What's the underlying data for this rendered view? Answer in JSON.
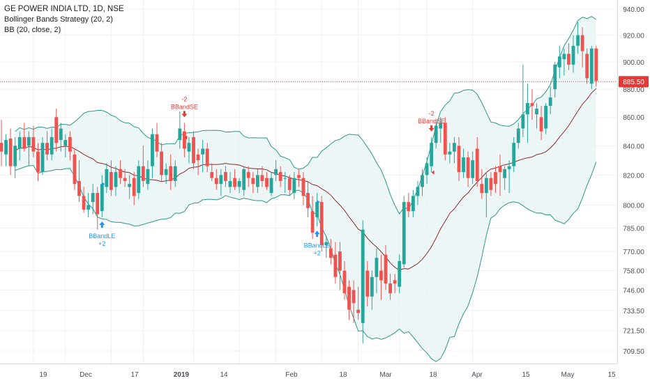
{
  "legend": {
    "title": "GE POWER INDIA LTD, 1D, NSE",
    "strategy": "Bollinger Bands Strategy (20, 2)",
    "indicator": "BB (20, close, 2)"
  },
  "colors": {
    "up": "#26a69a",
    "down": "#ef5350",
    "basis": "#8d2b2b",
    "band": "#2e9688",
    "band_fill": "#e6f3f3",
    "price_line": "#e53935",
    "buy_signal": "#2196f3",
    "sell_signal": "#e53935",
    "grid": "#eef0f3"
  },
  "chart_data": {
    "type": "candlestick",
    "price_axis_ticks": [
      "940.00",
      "920.00",
      "900.00",
      "885.50",
      "880.00",
      "860.00",
      "840.00",
      "820.00",
      "800.00",
      "785.00",
      "770.00",
      "758.00",
      "746.00",
      "733.50",
      "721.50",
      "709.50"
    ],
    "time_axis_labels": [
      "19",
      "Dec",
      "17",
      "2019",
      "14",
      "Feb",
      "18",
      "Mar",
      "18",
      "Apr",
      "15",
      "May",
      "15"
    ],
    "last_price": 885.5,
    "log_scale": true,
    "candles": [
      {
        "o": 842,
        "h": 858,
        "l": 826,
        "c": 836
      },
      {
        "o": 834,
        "h": 848,
        "l": 826,
        "c": 844
      },
      {
        "o": 845,
        "h": 852,
        "l": 820,
        "c": 826
      },
      {
        "o": 826,
        "h": 846,
        "l": 818,
        "c": 840
      },
      {
        "o": 838,
        "h": 850,
        "l": 830,
        "c": 846
      },
      {
        "o": 846,
        "h": 856,
        "l": 836,
        "c": 838
      },
      {
        "o": 840,
        "h": 850,
        "l": 826,
        "c": 846
      },
      {
        "o": 846,
        "h": 854,
        "l": 832,
        "c": 836
      },
      {
        "o": 836,
        "h": 842,
        "l": 816,
        "c": 822
      },
      {
        "o": 822,
        "h": 846,
        "l": 820,
        "c": 842
      },
      {
        "o": 842,
        "h": 850,
        "l": 830,
        "c": 834
      },
      {
        "o": 834,
        "h": 852,
        "l": 830,
        "c": 846
      },
      {
        "o": 860,
        "h": 866,
        "l": 836,
        "c": 842
      },
      {
        "o": 844,
        "h": 856,
        "l": 836,
        "c": 852
      },
      {
        "o": 840,
        "h": 848,
        "l": 832,
        "c": 844
      },
      {
        "o": 846,
        "h": 850,
        "l": 830,
        "c": 836
      },
      {
        "o": 834,
        "h": 838,
        "l": 810,
        "c": 814
      },
      {
        "o": 816,
        "h": 830,
        "l": 802,
        "c": 806
      },
      {
        "o": 806,
        "h": 812,
        "l": 795,
        "c": 797
      },
      {
        "o": 797,
        "h": 808,
        "l": 792,
        "c": 800
      },
      {
        "o": 802,
        "h": 814,
        "l": 794,
        "c": 808
      },
      {
        "o": 808,
        "h": 812,
        "l": 784,
        "c": 794
      },
      {
        "o": 796,
        "h": 820,
        "l": 792,
        "c": 814
      },
      {
        "o": 812,
        "h": 828,
        "l": 808,
        "c": 824
      },
      {
        "o": 822,
        "h": 830,
        "l": 806,
        "c": 810
      },
      {
        "o": 812,
        "h": 826,
        "l": 806,
        "c": 822
      },
      {
        "o": 824,
        "h": 830,
        "l": 814,
        "c": 818
      },
      {
        "o": 818,
        "h": 824,
        "l": 812,
        "c": 816
      },
      {
        "o": 812,
        "h": 820,
        "l": 804,
        "c": 814
      },
      {
        "o": 818,
        "h": 822,
        "l": 800,
        "c": 806
      },
      {
        "o": 808,
        "h": 830,
        "l": 804,
        "c": 826
      },
      {
        "o": 826,
        "h": 840,
        "l": 812,
        "c": 816
      },
      {
        "o": 814,
        "h": 830,
        "l": 810,
        "c": 824
      },
      {
        "o": 826,
        "h": 852,
        "l": 818,
        "c": 848
      },
      {
        "o": 848,
        "h": 856,
        "l": 832,
        "c": 836
      },
      {
        "o": 836,
        "h": 842,
        "l": 816,
        "c": 820
      },
      {
        "o": 820,
        "h": 828,
        "l": 814,
        "c": 824
      },
      {
        "o": 826,
        "h": 834,
        "l": 810,
        "c": 816
      },
      {
        "o": 816,
        "h": 830,
        "l": 812,
        "c": 826
      },
      {
        "o": 844,
        "h": 864,
        "l": 838,
        "c": 852
      },
      {
        "o": 850,
        "h": 856,
        "l": 832,
        "c": 838
      },
      {
        "o": 836,
        "h": 846,
        "l": 828,
        "c": 842
      },
      {
        "o": 846,
        "h": 850,
        "l": 824,
        "c": 828
      },
      {
        "o": 834,
        "h": 838,
        "l": 820,
        "c": 830
      },
      {
        "o": 834,
        "h": 844,
        "l": 822,
        "c": 838
      },
      {
        "o": 838,
        "h": 842,
        "l": 822,
        "c": 826
      },
      {
        "o": 822,
        "h": 828,
        "l": 816,
        "c": 818
      },
      {
        "o": 818,
        "h": 824,
        "l": 810,
        "c": 814
      },
      {
        "o": 814,
        "h": 824,
        "l": 806,
        "c": 820
      },
      {
        "o": 822,
        "h": 826,
        "l": 812,
        "c": 816
      },
      {
        "o": 812,
        "h": 822,
        "l": 808,
        "c": 816
      },
      {
        "o": 818,
        "h": 824,
        "l": 810,
        "c": 812
      },
      {
        "o": 812,
        "h": 818,
        "l": 808,
        "c": 816
      },
      {
        "o": 810,
        "h": 826,
        "l": 806,
        "c": 824
      },
      {
        "o": 822,
        "h": 826,
        "l": 812,
        "c": 818
      },
      {
        "o": 818,
        "h": 822,
        "l": 808,
        "c": 814
      },
      {
        "o": 812,
        "h": 824,
        "l": 808,
        "c": 820
      },
      {
        "o": 820,
        "h": 826,
        "l": 812,
        "c": 816
      },
      {
        "o": 818,
        "h": 822,
        "l": 810,
        "c": 812
      },
      {
        "o": 808,
        "h": 822,
        "l": 806,
        "c": 818
      },
      {
        "o": 820,
        "h": 830,
        "l": 816,
        "c": 824
      },
      {
        "o": 822,
        "h": 826,
        "l": 812,
        "c": 816
      },
      {
        "o": 818,
        "h": 822,
        "l": 808,
        "c": 818
      },
      {
        "o": 818,
        "h": 820,
        "l": 806,
        "c": 810
      },
      {
        "o": 808,
        "h": 822,
        "l": 804,
        "c": 818
      },
      {
        "o": 820,
        "h": 824,
        "l": 812,
        "c": 818
      },
      {
        "o": 818,
        "h": 822,
        "l": 800,
        "c": 806
      },
      {
        "o": 808,
        "h": 816,
        "l": 792,
        "c": 798
      },
      {
        "o": 796,
        "h": 806,
        "l": 778,
        "c": 782
      },
      {
        "o": 792,
        "h": 808,
        "l": 786,
        "c": 802
      },
      {
        "o": 802,
        "h": 806,
        "l": 770,
        "c": 774
      },
      {
        "o": 774,
        "h": 780,
        "l": 766,
        "c": 776
      },
      {
        "o": 772,
        "h": 778,
        "l": 762,
        "c": 766
      },
      {
        "o": 768,
        "h": 776,
        "l": 750,
        "c": 754
      },
      {
        "o": 770,
        "h": 776,
        "l": 746,
        "c": 758
      },
      {
        "o": 758,
        "h": 764,
        "l": 740,
        "c": 744
      },
      {
        "o": 748,
        "h": 752,
        "l": 728,
        "c": 734
      },
      {
        "o": 746,
        "h": 752,
        "l": 726,
        "c": 738
      },
      {
        "o": 734,
        "h": 748,
        "l": 728,
        "c": 732
      },
      {
        "o": 726,
        "h": 790,
        "l": 714,
        "c": 784
      },
      {
        "o": 758,
        "h": 764,
        "l": 736,
        "c": 742
      },
      {
        "o": 742,
        "h": 758,
        "l": 734,
        "c": 754
      },
      {
        "o": 754,
        "h": 772,
        "l": 744,
        "c": 766
      },
      {
        "o": 758,
        "h": 768,
        "l": 740,
        "c": 752
      },
      {
        "o": 768,
        "h": 774,
        "l": 746,
        "c": 750
      },
      {
        "o": 750,
        "h": 756,
        "l": 740,
        "c": 744
      },
      {
        "o": 752,
        "h": 756,
        "l": 744,
        "c": 750
      },
      {
        "o": 748,
        "h": 768,
        "l": 744,
        "c": 764
      },
      {
        "o": 762,
        "h": 806,
        "l": 760,
        "c": 802
      },
      {
        "o": 802,
        "h": 808,
        "l": 792,
        "c": 796
      },
      {
        "o": 796,
        "h": 810,
        "l": 792,
        "c": 806
      },
      {
        "o": 806,
        "h": 816,
        "l": 800,
        "c": 812
      },
      {
        "o": 812,
        "h": 824,
        "l": 806,
        "c": 820
      },
      {
        "o": 820,
        "h": 832,
        "l": 814,
        "c": 828
      },
      {
        "o": 826,
        "h": 846,
        "l": 822,
        "c": 842
      },
      {
        "o": 842,
        "h": 858,
        "l": 838,
        "c": 854
      },
      {
        "o": 852,
        "h": 860,
        "l": 842,
        "c": 856
      },
      {
        "o": 856,
        "h": 860,
        "l": 830,
        "c": 834
      },
      {
        "o": 834,
        "h": 842,
        "l": 828,
        "c": 836
      },
      {
        "o": 836,
        "h": 846,
        "l": 828,
        "c": 842
      },
      {
        "o": 840,
        "h": 846,
        "l": 816,
        "c": 822
      },
      {
        "o": 822,
        "h": 838,
        "l": 818,
        "c": 832
      },
      {
        "o": 832,
        "h": 836,
        "l": 812,
        "c": 818
      },
      {
        "o": 818,
        "h": 836,
        "l": 814,
        "c": 830
      },
      {
        "o": 838,
        "h": 846,
        "l": 812,
        "c": 816
      },
      {
        "o": 814,
        "h": 824,
        "l": 804,
        "c": 808
      },
      {
        "o": 808,
        "h": 822,
        "l": 792,
        "c": 818
      },
      {
        "o": 818,
        "h": 822,
        "l": 806,
        "c": 810
      },
      {
        "o": 822,
        "h": 826,
        "l": 808,
        "c": 814
      },
      {
        "o": 826,
        "h": 834,
        "l": 806,
        "c": 822
      },
      {
        "o": 818,
        "h": 826,
        "l": 810,
        "c": 824
      },
      {
        "o": 824,
        "h": 830,
        "l": 808,
        "c": 826
      },
      {
        "o": 826,
        "h": 846,
        "l": 822,
        "c": 842
      },
      {
        "o": 842,
        "h": 856,
        "l": 838,
        "c": 852
      },
      {
        "o": 852,
        "h": 898,
        "l": 846,
        "c": 862
      },
      {
        "o": 862,
        "h": 884,
        "l": 842,
        "c": 870
      },
      {
        "o": 870,
        "h": 880,
        "l": 858,
        "c": 868
      },
      {
        "o": 862,
        "h": 870,
        "l": 852,
        "c": 866
      },
      {
        "o": 860,
        "h": 868,
        "l": 844,
        "c": 850
      },
      {
        "o": 852,
        "h": 870,
        "l": 848,
        "c": 868
      },
      {
        "o": 868,
        "h": 882,
        "l": 862,
        "c": 874
      },
      {
        "o": 880,
        "h": 900,
        "l": 874,
        "c": 898
      },
      {
        "o": 896,
        "h": 912,
        "l": 888,
        "c": 904
      },
      {
        "o": 902,
        "h": 910,
        "l": 890,
        "c": 906
      },
      {
        "o": 906,
        "h": 914,
        "l": 894,
        "c": 898
      },
      {
        "o": 898,
        "h": 920,
        "l": 892,
        "c": 912
      },
      {
        "o": 912,
        "h": 930,
        "l": 906,
        "c": 920
      },
      {
        "o": 920,
        "h": 926,
        "l": 896,
        "c": 908
      },
      {
        "o": 906,
        "h": 910,
        "l": 884,
        "c": 888
      },
      {
        "o": 884,
        "h": 912,
        "l": 880,
        "c": 910
      },
      {
        "o": 910,
        "h": 912,
        "l": 882,
        "c": 886
      }
    ],
    "signals": [
      {
        "index": 22,
        "direction": "long",
        "label": "BBandLE",
        "qty": "+2"
      },
      {
        "index": 40,
        "direction": "short",
        "label": "BBandSE",
        "qty": "-2"
      },
      {
        "index": 69,
        "direction": "long",
        "label": "BBandLE",
        "qty": "+2"
      },
      {
        "index": 94,
        "direction": "short",
        "label": "BBandSE",
        "qty": "-2"
      }
    ],
    "bollinger": {
      "length": 20,
      "source": "close",
      "mult": 2
    }
  }
}
